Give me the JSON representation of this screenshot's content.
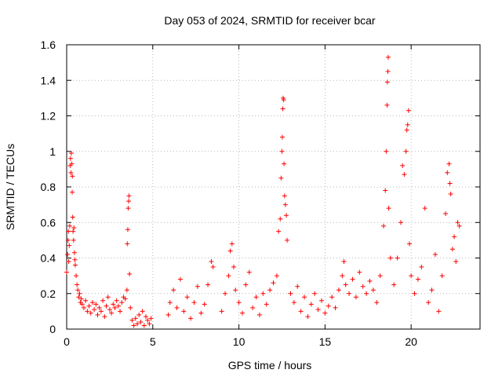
{
  "chart_data": {
    "type": "scatter",
    "title": "Day 053 of 2024, SRMTID for receiver bcar",
    "xlabel": "GPS time / hours",
    "ylabel": "SRMTID / TECUs",
    "xlim": [
      0,
      24
    ],
    "ylim": [
      0,
      1.6
    ],
    "grid": true,
    "marker": "+",
    "series_color": "#ff0000",
    "x_ticks": [
      0,
      5,
      10,
      15,
      20
    ],
    "x_tick_labels": [
      "0",
      "5",
      "10",
      "15",
      "20"
    ],
    "y_ticks": [
      0,
      0.2,
      0.4,
      0.6,
      0.8,
      1.0,
      1.2,
      1.4,
      1.6
    ],
    "y_tick_labels": [
      "0",
      "0.2",
      "0.4",
      "0.6",
      "0.8",
      "1",
      "1.2",
      "1.4",
      "1.6"
    ],
    "series": [
      {
        "name": "SRMTID",
        "points": [
          [
            0.0,
            0.32
          ],
          [
            0.05,
            0.42
          ],
          [
            0.08,
            0.5
          ],
          [
            0.1,
            0.55
          ],
          [
            0.12,
            0.38
          ],
          [
            0.15,
            0.47
          ],
          [
            0.18,
            0.58
          ],
          [
            0.2,
            0.92
          ],
          [
            0.22,
            0.96
          ],
          [
            0.25,
            0.88
          ],
          [
            0.27,
            0.99
          ],
          [
            0.3,
            0.93
          ],
          [
            0.32,
            0.77
          ],
          [
            0.33,
            0.86
          ],
          [
            0.35,
            0.63
          ],
          [
            0.37,
            0.55
          ],
          [
            0.4,
            0.5
          ],
          [
            0.42,
            0.57
          ],
          [
            0.45,
            0.43
          ],
          [
            0.48,
            0.39
          ],
          [
            0.5,
            0.36
          ],
          [
            0.55,
            0.3
          ],
          [
            0.6,
            0.25
          ],
          [
            0.65,
            0.22
          ],
          [
            0.7,
            0.18
          ],
          [
            0.75,
            0.2
          ],
          [
            0.8,
            0.15
          ],
          [
            0.85,
            0.17
          ],
          [
            0.9,
            0.14
          ],
          [
            1.0,
            0.12
          ],
          [
            1.1,
            0.16
          ],
          [
            1.2,
            0.1
          ],
          [
            1.3,
            0.13
          ],
          [
            1.4,
            0.09
          ],
          [
            1.5,
            0.15
          ],
          [
            1.6,
            0.11
          ],
          [
            1.7,
            0.14
          ],
          [
            1.8,
            0.08
          ],
          [
            1.9,
            0.12
          ],
          [
            2.0,
            0.1
          ],
          [
            2.1,
            0.16
          ],
          [
            2.2,
            0.07
          ],
          [
            2.3,
            0.13
          ],
          [
            2.4,
            0.18
          ],
          [
            2.5,
            0.11
          ],
          [
            2.6,
            0.09
          ],
          [
            2.7,
            0.14
          ],
          [
            2.8,
            0.12
          ],
          [
            2.9,
            0.16
          ],
          [
            3.0,
            0.13
          ],
          [
            3.1,
            0.1
          ],
          [
            3.2,
            0.15
          ],
          [
            3.3,
            0.18
          ],
          [
            3.4,
            0.17
          ],
          [
            3.5,
            0.22
          ],
          [
            3.52,
            0.48
          ],
          [
            3.55,
            0.56
          ],
          [
            3.57,
            0.68
          ],
          [
            3.6,
            0.72
          ],
          [
            3.62,
            0.75
          ],
          [
            3.65,
            0.31
          ],
          [
            3.7,
            0.12
          ],
          [
            3.8,
            0.05
          ],
          [
            3.9,
            0.02
          ],
          [
            4.0,
            0.06
          ],
          [
            4.1,
            0.03
          ],
          [
            4.2,
            0.08
          ],
          [
            4.3,
            0.04
          ],
          [
            4.4,
            0.1
          ],
          [
            4.5,
            0.02
          ],
          [
            4.6,
            0.07
          ],
          [
            4.7,
            0.05
          ],
          [
            4.8,
            0.03
          ],
          [
            4.9,
            0.06
          ],
          [
            5.9,
            0.08
          ],
          [
            6.0,
            0.15
          ],
          [
            6.2,
            0.22
          ],
          [
            6.4,
            0.12
          ],
          [
            6.6,
            0.28
          ],
          [
            6.8,
            0.1
          ],
          [
            7.0,
            0.18
          ],
          [
            7.2,
            0.06
          ],
          [
            7.4,
            0.15
          ],
          [
            7.6,
            0.24
          ],
          [
            7.8,
            0.09
          ],
          [
            8.0,
            0.14
          ],
          [
            8.2,
            0.25
          ],
          [
            8.4,
            0.38
          ],
          [
            8.5,
            0.35
          ],
          [
            9.0,
            0.1
          ],
          [
            9.2,
            0.2
          ],
          [
            9.4,
            0.3
          ],
          [
            9.5,
            0.44
          ],
          [
            9.6,
            0.48
          ],
          [
            9.7,
            0.35
          ],
          [
            9.8,
            0.22
          ],
          [
            10.0,
            0.15
          ],
          [
            10.2,
            0.09
          ],
          [
            10.4,
            0.25
          ],
          [
            10.6,
            0.32
          ],
          [
            10.8,
            0.12
          ],
          [
            11.0,
            0.18
          ],
          [
            11.2,
            0.08
          ],
          [
            11.4,
            0.2
          ],
          [
            11.6,
            0.14
          ],
          [
            11.8,
            0.22
          ],
          [
            12.0,
            0.26
          ],
          [
            12.2,
            0.3
          ],
          [
            12.3,
            0.55
          ],
          [
            12.4,
            0.62
          ],
          [
            12.45,
            0.85
          ],
          [
            12.5,
            1.0
          ],
          [
            12.52,
            1.08
          ],
          [
            12.55,
            1.24
          ],
          [
            12.57,
            1.3
          ],
          [
            12.6,
            1.29
          ],
          [
            12.62,
            0.93
          ],
          [
            12.65,
            0.75
          ],
          [
            12.7,
            0.7
          ],
          [
            12.75,
            0.64
          ],
          [
            12.8,
            0.5
          ],
          [
            13.0,
            0.2
          ],
          [
            13.2,
            0.15
          ],
          [
            13.4,
            0.24
          ],
          [
            13.6,
            0.1
          ],
          [
            13.8,
            0.18
          ],
          [
            14.0,
            0.07
          ],
          [
            14.2,
            0.14
          ],
          [
            14.4,
            0.2
          ],
          [
            14.6,
            0.11
          ],
          [
            14.8,
            0.16
          ],
          [
            15.0,
            0.09
          ],
          [
            15.2,
            0.13
          ],
          [
            15.4,
            0.18
          ],
          [
            15.6,
            0.12
          ],
          [
            15.8,
            0.22
          ],
          [
            16.0,
            0.3
          ],
          [
            16.1,
            0.38
          ],
          [
            16.2,
            0.25
          ],
          [
            16.4,
            0.2
          ],
          [
            16.6,
            0.28
          ],
          [
            16.8,
            0.18
          ],
          [
            17.0,
            0.32
          ],
          [
            17.2,
            0.24
          ],
          [
            17.4,
            0.2
          ],
          [
            17.6,
            0.27
          ],
          [
            17.8,
            0.22
          ],
          [
            18.0,
            0.15
          ],
          [
            18.2,
            0.3
          ],
          [
            18.4,
            0.58
          ],
          [
            18.5,
            0.78
          ],
          [
            18.55,
            1.0
          ],
          [
            18.6,
            1.26
          ],
          [
            18.62,
            1.39
          ],
          [
            18.65,
            1.45
          ],
          [
            18.67,
            1.53
          ],
          [
            18.7,
            0.68
          ],
          [
            18.8,
            0.4
          ],
          [
            19.0,
            0.25
          ],
          [
            19.2,
            0.4
          ],
          [
            19.4,
            0.6
          ],
          [
            19.5,
            0.92
          ],
          [
            19.6,
            0.87
          ],
          [
            19.7,
            1.0
          ],
          [
            19.75,
            1.12
          ],
          [
            19.8,
            1.15
          ],
          [
            19.85,
            1.23
          ],
          [
            19.9,
            0.48
          ],
          [
            20.0,
            0.3
          ],
          [
            20.2,
            0.2
          ],
          [
            20.4,
            0.28
          ],
          [
            20.6,
            0.35
          ],
          [
            20.8,
            0.68
          ],
          [
            21.0,
            0.15
          ],
          [
            21.2,
            0.22
          ],
          [
            21.4,
            0.42
          ],
          [
            21.6,
            0.1
          ],
          [
            21.8,
            0.3
          ],
          [
            22.0,
            0.65
          ],
          [
            22.1,
            0.88
          ],
          [
            22.2,
            0.93
          ],
          [
            22.25,
            0.82
          ],
          [
            22.3,
            0.76
          ],
          [
            22.4,
            0.45
          ],
          [
            22.5,
            0.52
          ],
          [
            22.6,
            0.38
          ],
          [
            22.7,
            0.6
          ],
          [
            22.8,
            0.58
          ]
        ]
      }
    ]
  }
}
